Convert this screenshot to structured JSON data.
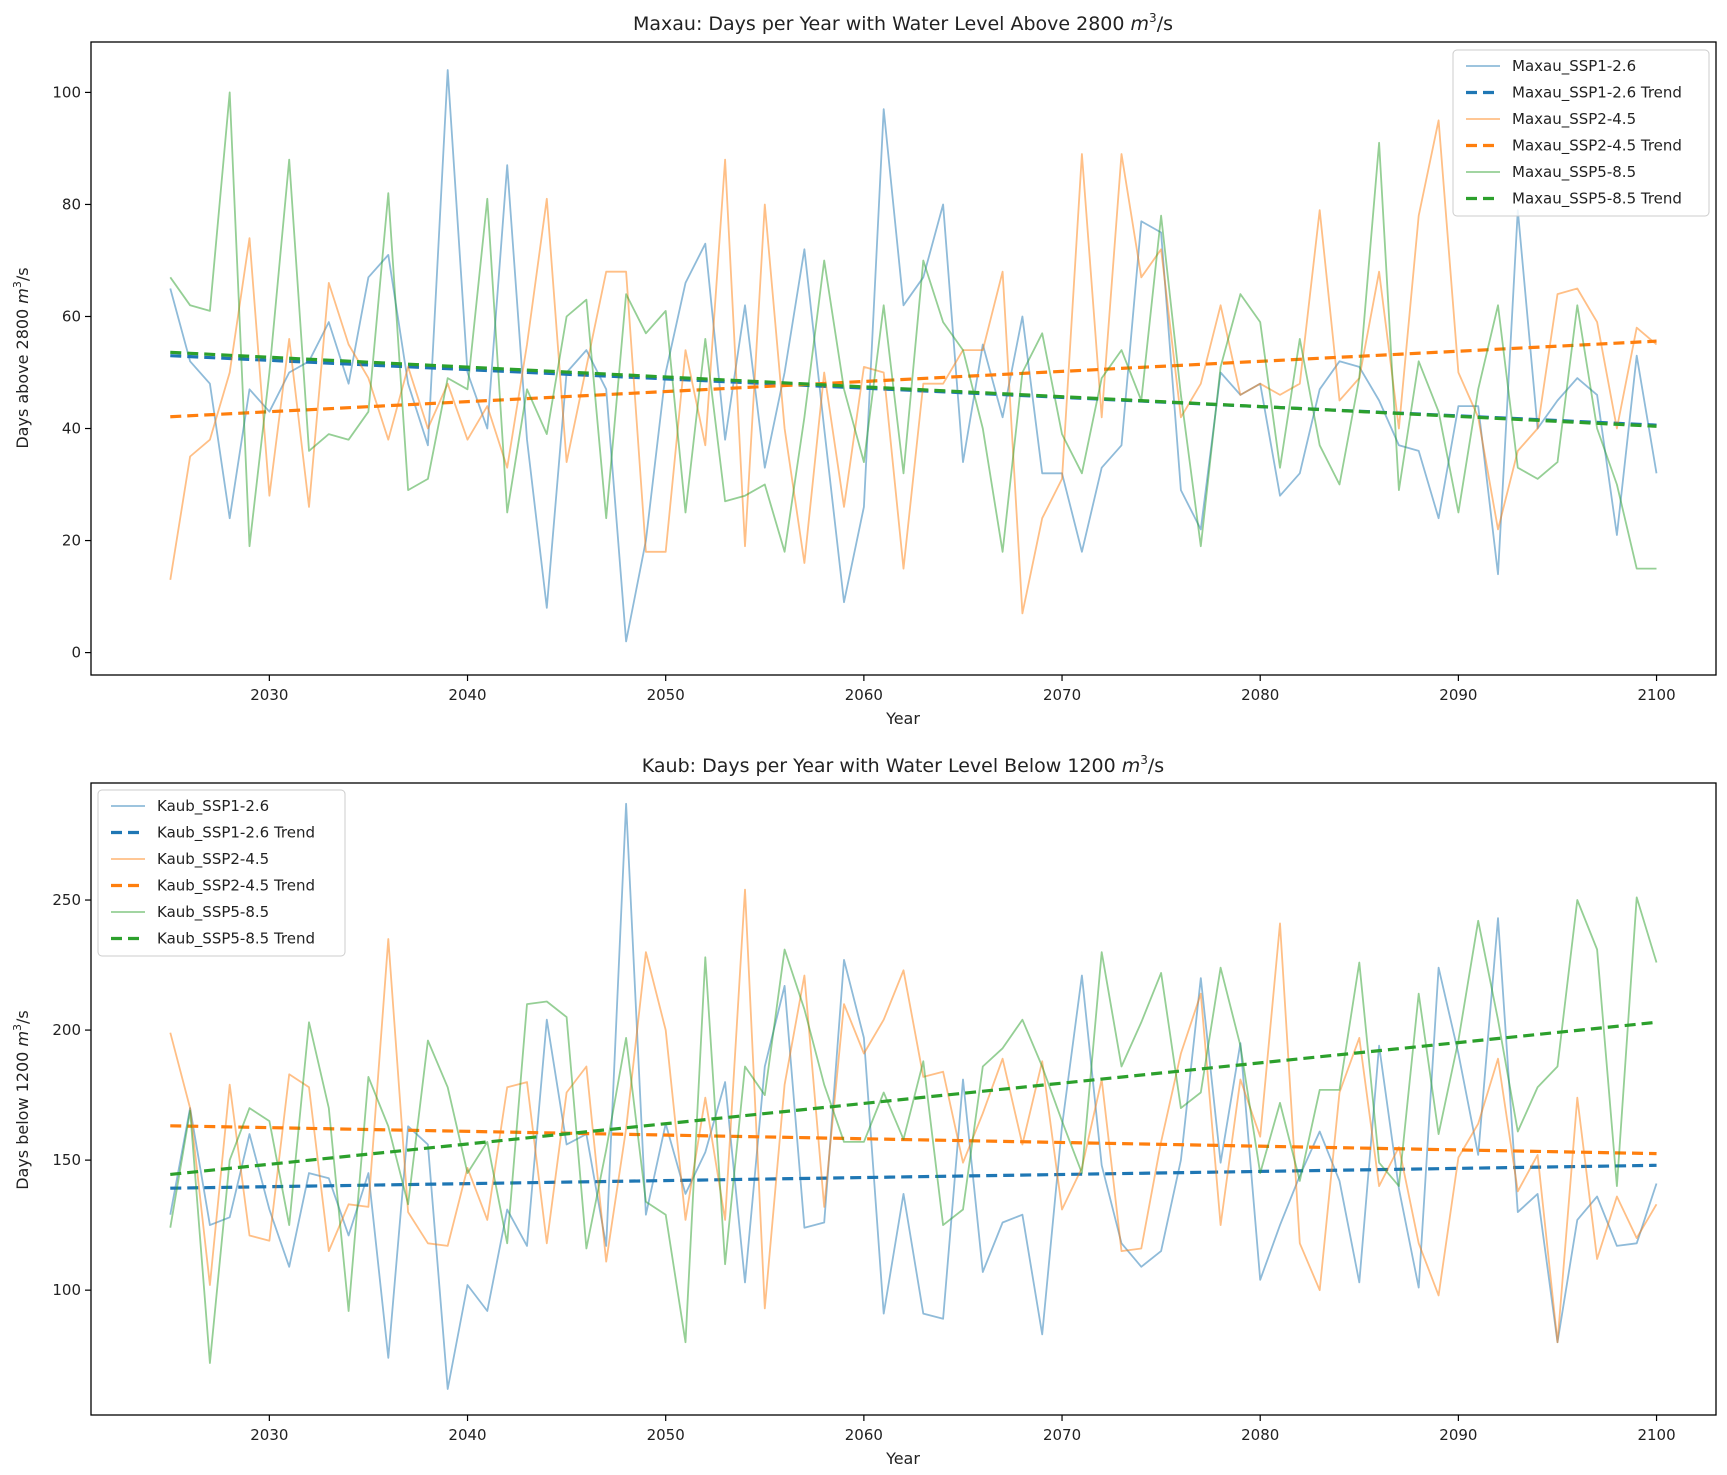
{
  "chart_data": [
    {
      "type": "line",
      "title_prefix": "Maxau: Days per Year with Water Level Above 2800 ",
      "title_unit": "m³/s",
      "title_unit_base": "m",
      "title_unit_sup": "3",
      "title_unit_tail": "/s",
      "title": "Maxau: Days per Year with Water Level Above 2800 m³/s",
      "xlabel": "Year",
      "ylabel": "Days above 2800 m³/s",
      "ylabel_prefix": "Days above 2800 ",
      "xlim": [
        2021,
        2103
      ],
      "ylim": [
        -4,
        109
      ],
      "xticks": [
        2030,
        2040,
        2050,
        2060,
        2070,
        2080,
        2090,
        2100
      ],
      "yticks": [
        0,
        20,
        40,
        60,
        80,
        100
      ],
      "legend_position": "upper right",
      "grid": false,
      "x": [
        2025,
        2026,
        2027,
        2028,
        2029,
        2030,
        2031,
        2032,
        2033,
        2034,
        2035,
        2036,
        2037,
        2038,
        2039,
        2040,
        2041,
        2042,
        2043,
        2044,
        2045,
        2046,
        2047,
        2048,
        2049,
        2050,
        2051,
        2052,
        2053,
        2054,
        2055,
        2056,
        2057,
        2058,
        2059,
        2060,
        2061,
        2062,
        2063,
        2064,
        2065,
        2066,
        2067,
        2068,
        2069,
        2070,
        2071,
        2072,
        2073,
        2074,
        2075,
        2076,
        2077,
        2078,
        2079,
        2080,
        2081,
        2082,
        2083,
        2084,
        2085,
        2086,
        2087,
        2088,
        2089,
        2090,
        2091,
        2092,
        2093,
        2094,
        2095,
        2096,
        2097,
        2098,
        2099,
        2100
      ],
      "series": [
        {
          "name": "Maxau_SSP1-2.6",
          "color": "#1f77b4",
          "style": "solid",
          "values": [
            65,
            52,
            48,
            24,
            47,
            43,
            50,
            52,
            59,
            48,
            67,
            71,
            48,
            37,
            104,
            50,
            40,
            87,
            38,
            8,
            50,
            54,
            47,
            2,
            20,
            50,
            66,
            73,
            38,
            62,
            33,
            50,
            72,
            40,
            9,
            26,
            97,
            62,
            67,
            80,
            34,
            55,
            42,
            60,
            32,
            32,
            18,
            33,
            37,
            77,
            75,
            29,
            22,
            50,
            46,
            48,
            28,
            32,
            47,
            52,
            51,
            45,
            37,
            36,
            24,
            44,
            44,
            14,
            79,
            40,
            45,
            49,
            46,
            21,
            53,
            32
          ]
        },
        {
          "name": "Maxau_SSP1-2.6 Trend",
          "color": "#1f77b4",
          "style": "dashed",
          "trend": [
            53.0,
            40.6
          ]
        },
        {
          "name": "Maxau_SSP2-4.5",
          "color": "#ff7f0e",
          "style": "solid",
          "values": [
            13,
            35,
            38,
            50,
            74,
            28,
            56,
            26,
            66,
            55,
            49,
            38,
            51,
            40,
            48,
            38,
            44,
            33,
            55,
            81,
            34,
            51,
            68,
            68,
            18,
            18,
            54,
            37,
            88,
            19,
            80,
            40,
            16,
            50,
            26,
            51,
            50,
            15,
            48,
            48,
            54,
            54,
            68,
            7,
            24,
            31,
            89,
            42,
            89,
            67,
            72,
            42,
            48,
            62,
            46,
            48,
            46,
            48,
            79,
            45,
            49,
            68,
            40,
            78,
            95,
            50,
            42,
            22,
            36,
            40,
            64,
            65,
            59,
            40,
            58,
            55
          ]
        },
        {
          "name": "Maxau_SSP2-4.5 Trend",
          "color": "#ff7f0e",
          "style": "dashed",
          "trend": [
            42.1,
            55.6
          ]
        },
        {
          "name": "Maxau_SSP5-8.5",
          "color": "#2ca02c",
          "style": "solid",
          "values": [
            67,
            62,
            61,
            100,
            19,
            50,
            88,
            36,
            39,
            38,
            43,
            82,
            29,
            31,
            49,
            47,
            81,
            25,
            47,
            39,
            60,
            63,
            24,
            64,
            57,
            61,
            25,
            56,
            27,
            28,
            30,
            18,
            42,
            70,
            47,
            34,
            62,
            32,
            70,
            59,
            54,
            40,
            18,
            50,
            57,
            39,
            32,
            49,
            54,
            45,
            78,
            46,
            19,
            51,
            64,
            59,
            33,
            56,
            37,
            30,
            49,
            91,
            29,
            52,
            43,
            25,
            47,
            62,
            33,
            31,
            34,
            62,
            40,
            30,
            15,
            15
          ]
        },
        {
          "name": "Maxau_SSP5-8.5 Trend",
          "color": "#2ca02c",
          "style": "dashed",
          "trend": [
            53.6,
            40.4
          ]
        }
      ]
    },
    {
      "type": "line",
      "title_prefix": "Kaub: Days per Year with Water Level Below 1200 ",
      "title_unit": "m³/s",
      "title_unit_base": "m",
      "title_unit_sup": "3",
      "title_unit_tail": "/s",
      "title": "Kaub: Days per Year with Water Level Below 1200 m³/s",
      "xlabel": "Year",
      "ylabel": "Days below 1200 m³/s",
      "ylabel_prefix": "Days below 1200 ",
      "xlim": [
        2021,
        2103
      ],
      "ylim": [
        52,
        295
      ],
      "xticks": [
        2030,
        2040,
        2050,
        2060,
        2070,
        2080,
        2090,
        2100
      ],
      "yticks": [
        100,
        150,
        200,
        250
      ],
      "legend_position": "upper left",
      "grid": false,
      "x": [
        2025,
        2026,
        2027,
        2028,
        2029,
        2030,
        2031,
        2032,
        2033,
        2034,
        2035,
        2036,
        2037,
        2038,
        2039,
        2040,
        2041,
        2042,
        2043,
        2044,
        2045,
        2046,
        2047,
        2048,
        2049,
        2050,
        2051,
        2052,
        2053,
        2054,
        2055,
        2056,
        2057,
        2058,
        2059,
        2060,
        2061,
        2062,
        2063,
        2064,
        2065,
        2066,
        2067,
        2068,
        2069,
        2070,
        2071,
        2072,
        2073,
        2074,
        2075,
        2076,
        2077,
        2078,
        2079,
        2080,
        2081,
        2082,
        2083,
        2084,
        2085,
        2086,
        2087,
        2088,
        2089,
        2090,
        2091,
        2092,
        2093,
        2094,
        2095,
        2096,
        2097,
        2098,
        2099,
        2100
      ],
      "series": [
        {
          "name": "Kaub_SSP1-2.6",
          "color": "#1f77b4",
          "style": "solid",
          "values": [
            129,
            170,
            125,
            128,
            160,
            131,
            109,
            145,
            143,
            121,
            145,
            74,
            163,
            156,
            62,
            102,
            92,
            131,
            117,
            204,
            156,
            160,
            117,
            287,
            129,
            164,
            137,
            153,
            180,
            103,
            186,
            217,
            124,
            126,
            227,
            197,
            91,
            137,
            91,
            89,
            181,
            107,
            126,
            129,
            83,
            163,
            221,
            148,
            118,
            109,
            115,
            150,
            220,
            149,
            195,
            104,
            125,
            144,
            161,
            142,
            103,
            194,
            139,
            101,
            224,
            191,
            152,
            243,
            130,
            137,
            80,
            127,
            136,
            117,
            118,
            141
          ]
        },
        {
          "name": "Kaub_SSP1-2.6 Trend",
          "color": "#1f77b4",
          "style": "dashed",
          "trend": [
            139.2,
            148.0
          ]
        },
        {
          "name": "Kaub_SSP2-4.5",
          "color": "#ff7f0e",
          "style": "solid",
          "values": [
            199,
            170,
            102,
            179,
            121,
            119,
            183,
            178,
            115,
            133,
            132,
            235,
            130,
            118,
            117,
            147,
            127,
            178,
            180,
            118,
            176,
            186,
            111,
            162,
            230,
            200,
            127,
            174,
            127,
            254,
            93,
            179,
            221,
            132,
            210,
            191,
            204,
            223,
            182,
            184,
            149,
            168,
            189,
            156,
            188,
            131,
            147,
            181,
            115,
            116,
            157,
            191,
            214,
            125,
            181,
            159,
            241,
            118,
            100,
            176,
            197,
            140,
            155,
            118,
            98,
            151,
            164,
            189,
            138,
            152,
            80,
            174,
            112,
            136,
            120,
            133
          ]
        },
        {
          "name": "Kaub_SSP2-4.5 Trend",
          "color": "#ff7f0e",
          "style": "dashed",
          "trend": [
            163.2,
            152.5
          ]
        },
        {
          "name": "Kaub_SSP5-8.5",
          "color": "#2ca02c",
          "style": "solid",
          "values": [
            124,
            169,
            72,
            150,
            170,
            165,
            125,
            203,
            170,
            92,
            182,
            163,
            133,
            196,
            178,
            145,
            157,
            118,
            210,
            211,
            205,
            116,
            154,
            197,
            134,
            129,
            80,
            228,
            110,
            186,
            175,
            231,
            208,
            179,
            157,
            157,
            176,
            158,
            188,
            125,
            131,
            186,
            193,
            204,
            186,
            165,
            145,
            230,
            186,
            203,
            222,
            170,
            176,
            224,
            194,
            145,
            172,
            142,
            177,
            177,
            226,
            149,
            140,
            214,
            160,
            196,
            242,
            204,
            161,
            178,
            186,
            250,
            231,
            140,
            251,
            226
          ]
        },
        {
          "name": "Kaub_SSP5-8.5 Trend",
          "color": "#2ca02c",
          "style": "dashed",
          "trend": [
            144.5,
            203.0
          ]
        }
      ]
    }
  ]
}
